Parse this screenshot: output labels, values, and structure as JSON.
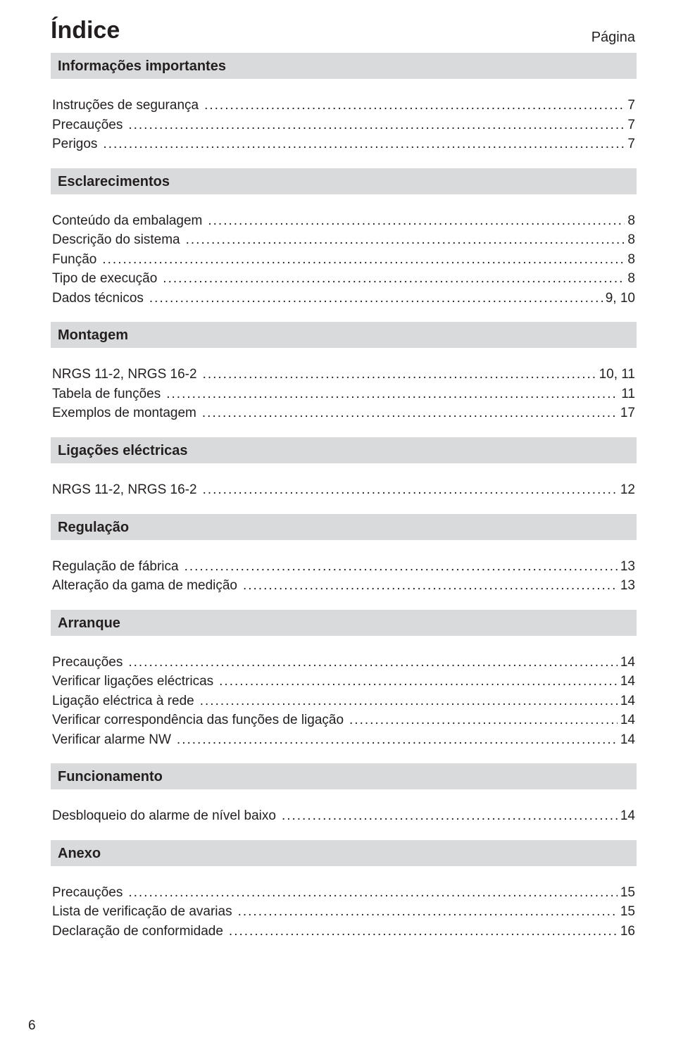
{
  "title": "Índice",
  "page_label": "Página",
  "footer_page": "6",
  "sections": [
    {
      "heading": "Informações importantes",
      "show_page_label": true,
      "items": [
        {
          "label": "Instruções de segurança",
          "page": "7"
        },
        {
          "label": "Precauções",
          "page": "7"
        },
        {
          "label": "Perigos",
          "page": "7"
        }
      ]
    },
    {
      "heading": "Esclarecimentos",
      "show_page_label": false,
      "items": [
        {
          "label": "Conteúdo da embalagem",
          "page": "8"
        },
        {
          "label": "Descrição do sistema",
          "page": "8"
        },
        {
          "label": "Função",
          "page": "8"
        },
        {
          "label": "Tipo de execução",
          "page": "8"
        },
        {
          "label": "Dados técnicos",
          "page": "9, 10"
        }
      ]
    },
    {
      "heading": "Montagem",
      "show_page_label": false,
      "items": [
        {
          "label": "NRGS 11-2, NRGS 16-2",
          "page": "10, 11"
        },
        {
          "label": "Tabela de funções",
          "page": "11"
        },
        {
          "label": "Exemplos de montagem",
          "page": "17"
        }
      ]
    },
    {
      "heading": "Ligações eléctricas",
      "show_page_label": false,
      "items": [
        {
          "label": "NRGS 11-2, NRGS 16-2",
          "page": "12"
        }
      ]
    },
    {
      "heading": "Regulação",
      "show_page_label": false,
      "items": [
        {
          "label": "Regulação de fábrica",
          "page": "13"
        },
        {
          "label": "Alteração da gama de medição",
          "page": "13"
        }
      ]
    },
    {
      "heading": "Arranque",
      "show_page_label": false,
      "items": [
        {
          "label": "Precauções",
          "page": "14"
        },
        {
          "label": "Verificar ligações eléctricas",
          "page": "14"
        },
        {
          "label": "Ligação eléctrica à rede",
          "page": "14"
        },
        {
          "label": "Verificar correspondência das funções de ligação",
          "page": "14"
        },
        {
          "label": "Verificar alarme NW",
          "page": "14"
        }
      ]
    },
    {
      "heading": "Funcionamento",
      "show_page_label": false,
      "items": [
        {
          "label": "Desbloqueio do alarme de nível baixo",
          "page": "14"
        }
      ]
    },
    {
      "heading": "Anexo",
      "show_page_label": false,
      "items": [
        {
          "label": "Precauções",
          "page": "15"
        },
        {
          "label": "Lista de verificação de avarias",
          "page": "15"
        },
        {
          "label": "Declaração de conformidade",
          "page": "16"
        }
      ]
    }
  ]
}
